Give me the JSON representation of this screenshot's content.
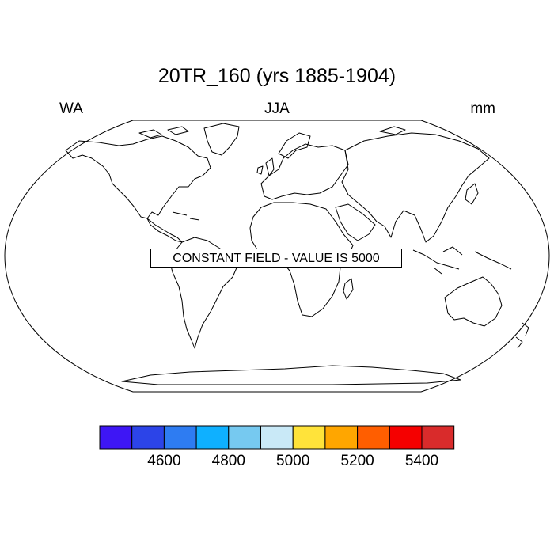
{
  "title": "20TR_160 (yrs 1885-1904)",
  "subtitle_left": "WA",
  "subtitle_center": "JJA",
  "subtitle_right": "mm",
  "map_label": "CONSTANT FIELD - VALUE IS 5000",
  "projection": "robinson",
  "colorbar": {
    "colors": [
      "#3e16f5",
      "#2c44e8",
      "#2e7cf2",
      "#0fb0ff",
      "#76c9f0",
      "#c9e9f7",
      "#ffe33a",
      "#ffa600",
      "#ff5e00",
      "#f50000",
      "#d92b2b"
    ],
    "tick_labels": [
      "4600",
      "4800",
      "5000",
      "5200",
      "5400"
    ]
  }
}
